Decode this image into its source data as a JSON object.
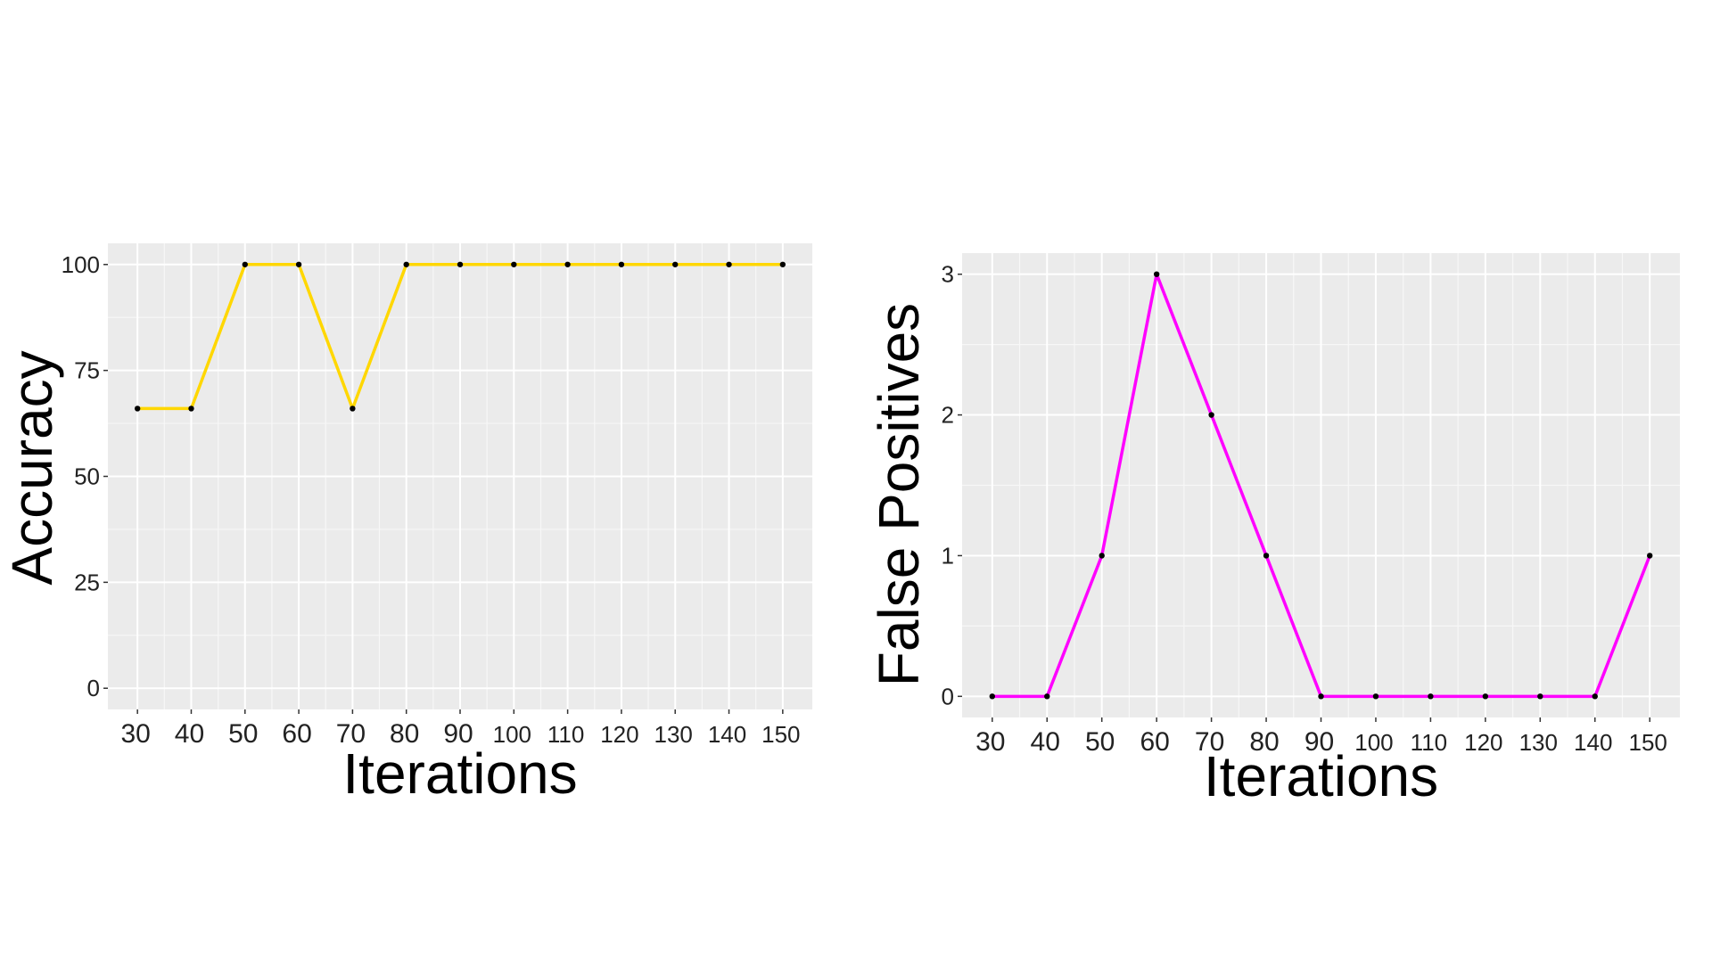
{
  "chart_data": [
    {
      "type": "line",
      "title": "",
      "xlabel": "Iterations",
      "ylabel": "Accuracy",
      "x": [
        30,
        40,
        50,
        60,
        70,
        80,
        90,
        100,
        110,
        120,
        130,
        140,
        150
      ],
      "xticks": [
        "30",
        "40",
        "50",
        "60",
        "70",
        "80",
        "90",
        "100",
        "110",
        "120",
        "130",
        "140",
        "150"
      ],
      "yticks": [
        "0",
        "25",
        "50",
        "75",
        "100"
      ],
      "ytick_values": [
        0,
        25,
        50,
        75,
        100
      ],
      "xlim": [
        24.5,
        155.5
      ],
      "ylim": [
        -5,
        105
      ],
      "series": [
        {
          "values": [
            66,
            66,
            100,
            100,
            66,
            100,
            100,
            100,
            100,
            100,
            100,
            100,
            100
          ],
          "color": "#FFD700"
        }
      ],
      "point_color": "#000000",
      "panel_background": "#EBEBEB",
      "grid": true,
      "legend": "none"
    },
    {
      "type": "line",
      "title": "",
      "xlabel": "Iterations",
      "ylabel": "False Positives",
      "x": [
        30,
        40,
        50,
        60,
        70,
        80,
        90,
        100,
        110,
        120,
        130,
        140,
        150
      ],
      "xticks": [
        "30",
        "40",
        "50",
        "60",
        "70",
        "80",
        "90",
        "100",
        "110",
        "120",
        "130",
        "140",
        "150"
      ],
      "yticks": [
        "0",
        "1",
        "2",
        "3"
      ],
      "ytick_values": [
        0,
        1,
        2,
        3
      ],
      "xlim": [
        24.5,
        155.5
      ],
      "ylim": [
        -0.15,
        3.15
      ],
      "series": [
        {
          "values": [
            0,
            0,
            1,
            3,
            2,
            1,
            0,
            0,
            0,
            0,
            0,
            0,
            1
          ],
          "color": "#FF00FF"
        }
      ],
      "point_color": "#000000",
      "panel_background": "#EBEBEB",
      "grid": true,
      "legend": "none"
    }
  ]
}
